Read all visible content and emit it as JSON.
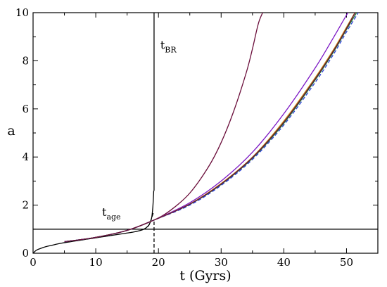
{
  "chart_data": {
    "type": "line",
    "xlabel": "t (Gyrs)",
    "ylabel": "a",
    "xlim": [
      0,
      55
    ],
    "ylim": [
      0,
      10
    ],
    "xticks": [
      "0",
      "10",
      "20",
      "30",
      "40",
      "50"
    ],
    "yticks": [
      "0",
      "2",
      "4",
      "6",
      "8",
      "10"
    ],
    "grid": false,
    "legend": "none",
    "annotations": [
      {
        "base": "t",
        "sub": "BR",
        "x": 20.3,
        "y": 8.5
      },
      {
        "base": "t",
        "sub": "age",
        "x": 11.0,
        "y": 1.55
      }
    ],
    "reference_lines": [
      {
        "orientation": "horizontal",
        "y": 1.0,
        "color": "#000000",
        "style": "solid"
      },
      {
        "orientation": "vertical",
        "x": 19.3,
        "y_from": 2.6,
        "y_to": 10,
        "color": "#000000",
        "style": "solid"
      },
      {
        "orientation": "vertical",
        "x": 19.3,
        "y_from": 0,
        "y_to": 1.4,
        "color": "#000000",
        "style": "dashed"
      }
    ],
    "series": [
      {
        "color": "#000000",
        "style": "solid",
        "x": [
          0.0,
          0.5,
          1,
          2,
          3,
          4,
          5,
          6,
          7,
          8,
          9,
          10,
          11,
          12,
          13,
          14,
          15,
          16,
          17,
          17.5,
          18,
          18.5,
          18.9,
          19.1,
          19.25
        ],
        "y": [
          0.0,
          0.12,
          0.18,
          0.27,
          0.33,
          0.39,
          0.44,
          0.48,
          0.52,
          0.56,
          0.6,
          0.64,
          0.68,
          0.72,
          0.76,
          0.8,
          0.84,
          0.88,
          0.94,
          0.98,
          1.05,
          1.18,
          1.45,
          1.9,
          2.6
        ]
      },
      {
        "color": "#000000",
        "style": "dashed",
        "x": [
          17.5,
          18,
          18.5,
          18.9,
          19.2
        ],
        "y": [
          0.98,
          1.05,
          1.18,
          1.45,
          1.7
        ]
      },
      {
        "color": "#6a0d3a",
        "style": "solid",
        "x": [
          5,
          10,
          15,
          19.3,
          22,
          25,
          28,
          30,
          32,
          34,
          35,
          36,
          37
        ],
        "y": [
          0.48,
          0.66,
          0.95,
          1.38,
          1.8,
          2.5,
          3.6,
          4.6,
          5.9,
          7.5,
          8.5,
          9.6,
          10.2
        ]
      },
      {
        "color": "#7b16c4",
        "style": "solid",
        "x": [
          5,
          10,
          15,
          19.3,
          25,
          30,
          35,
          40,
          45,
          48,
          50,
          51
        ],
        "y": [
          0.48,
          0.66,
          0.95,
          1.38,
          2.1,
          3.0,
          4.2,
          5.8,
          7.7,
          9.0,
          9.9,
          10.3
        ]
      },
      {
        "color": "#d4a017",
        "style": "solid",
        "x": [
          5,
          10,
          15,
          19.3,
          25,
          30,
          35,
          40,
          45,
          48,
          50,
          52
        ],
        "y": [
          0.48,
          0.66,
          0.95,
          1.38,
          2.05,
          2.9,
          4.0,
          5.5,
          7.3,
          8.5,
          9.4,
          10.3
        ]
      },
      {
        "color": "#1d7a32",
        "style": "solid",
        "x": [
          5,
          10,
          15,
          19.3,
          25,
          30,
          35,
          40,
          45,
          48,
          50,
          52.3
        ],
        "y": [
          0.48,
          0.66,
          0.95,
          1.38,
          2.03,
          2.86,
          3.95,
          5.4,
          7.2,
          8.4,
          9.3,
          10.3
        ]
      },
      {
        "color": "#2b3fd6",
        "style": "dashed",
        "x": [
          5,
          10,
          15,
          19.3,
          25,
          30,
          35,
          40,
          45,
          48,
          50,
          52.6
        ],
        "y": [
          0.48,
          0.66,
          0.95,
          1.38,
          2.0,
          2.82,
          3.9,
          5.33,
          7.1,
          8.3,
          9.2,
          10.3
        ]
      },
      {
        "color": "#6a0d3a",
        "style": "solid",
        "x": [
          5,
          10,
          15,
          19.3,
          25,
          30,
          35,
          40,
          45,
          48,
          50,
          52
        ],
        "y": [
          0.48,
          0.66,
          0.95,
          1.38,
          2.04,
          2.88,
          3.98,
          5.45,
          7.25,
          8.45,
          9.35,
          10.3
        ]
      }
    ]
  }
}
